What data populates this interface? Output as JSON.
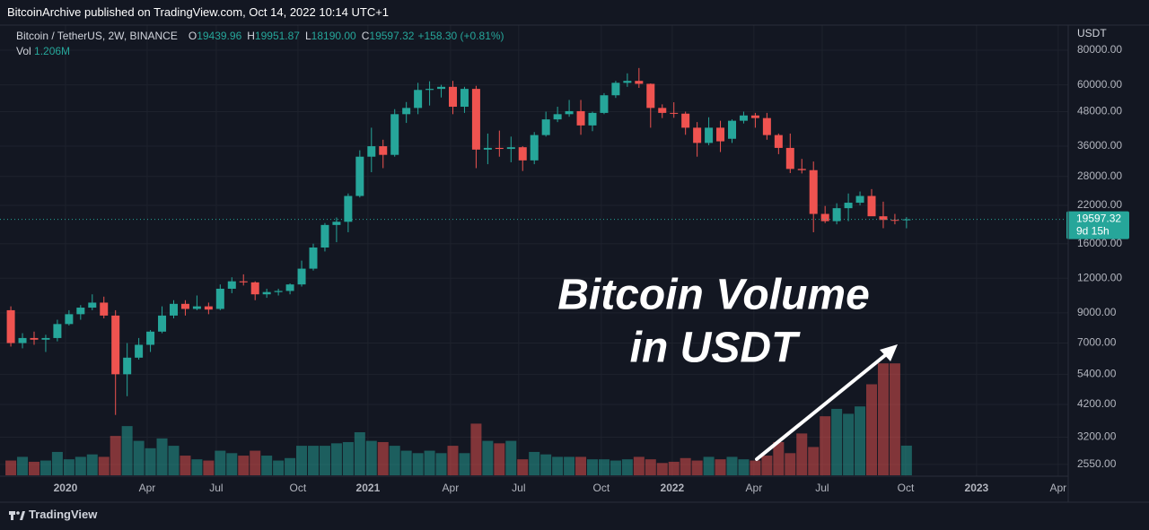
{
  "header": {
    "text": "BitcoinArchive published on TradingView.com, Oct 14, 2022 10:14 UTC+1"
  },
  "chart_data": {
    "type": "candlestick",
    "symbol": "Bitcoin / TetherUS, 2W, BINANCE",
    "ohlc_letters": [
      "O",
      "H",
      "L",
      "C"
    ],
    "ohlc_labels": [
      "19439.96",
      "19951.87",
      "18190.00",
      "19597.32"
    ],
    "change_label": "+158.30 (+0.81%)",
    "volume_name": "Vol",
    "volume_label": "1.206M",
    "axis_unit": "USDT",
    "countdown": "9d 15h",
    "annotation": [
      "Bitcoin Volume",
      "in USDT"
    ],
    "up_color": "#26a69a",
    "down_color": "#ef5350",
    "log_y": true,
    "grid": true,
    "xlim": [
      -0.16,
      90.9
    ],
    "ylim": [
      2330,
      98600
    ],
    "volume_lim": [
      0,
      18.3
    ],
    "xticks": [
      {
        "value": 4.7,
        "label": "2020"
      },
      {
        "value": 11.72,
        "label": "Apr"
      },
      {
        "value": 17.66,
        "label": "Jul"
      },
      {
        "value": 24.68,
        "label": "Oct"
      },
      {
        "value": 30.7,
        "label": "2021"
      },
      {
        "value": 37.8,
        "label": "Apr"
      },
      {
        "value": 43.66,
        "label": "Jul"
      },
      {
        "value": 50.76,
        "label": "Oct"
      },
      {
        "value": 56.86,
        "label": "2022"
      },
      {
        "value": 63.88,
        "label": "Apr"
      },
      {
        "value": 69.75,
        "label": "Jul"
      },
      {
        "value": 76.93,
        "label": "Oct"
      },
      {
        "value": 83.02,
        "label": "2023"
      },
      {
        "value": 90.04,
        "label": "Apr"
      }
    ],
    "yticks": [
      {
        "value": 80000,
        "label": "80000.00"
      },
      {
        "value": 60000,
        "label": "60000.00"
      },
      {
        "value": 48000,
        "label": "48000.00"
      },
      {
        "value": 36000,
        "label": "36000.00"
      },
      {
        "value": 28000,
        "label": "28000.00"
      },
      {
        "value": 22000,
        "label": "22000.00"
      },
      {
        "value": 16000,
        "label": "16000.00"
      },
      {
        "value": 12000,
        "label": "12000.00"
      },
      {
        "value": 9000,
        "label": "9000.00"
      },
      {
        "value": 7000,
        "label": "7000.00"
      },
      {
        "value": 5400,
        "label": "5400.00"
      },
      {
        "value": 4200,
        "label": "4200.00"
      },
      {
        "value": 3200,
        "label": "3200.00"
      },
      {
        "value": 2550,
        "label": "2550.00"
      }
    ],
    "open": [
      9200,
      7000,
      7300,
      7200,
      7300,
      8200,
      8900,
      9400,
      9800,
      8800,
      5400,
      6200,
      6900,
      7700,
      8800,
      9700,
      9300,
      9500,
      9300,
      11000,
      11700,
      11600,
      10500,
      10700,
      10800,
      11400,
      13000,
      15500,
      18700,
      19200,
      23800,
      33000,
      36000,
      33500,
      47000,
      49500,
      57500,
      58000,
      59000,
      50000,
      58000,
      35000,
      35500,
      35200,
      35700,
      32000,
      39500,
      45000,
      47000,
      48200,
      42800,
      47500,
      55000,
      61000,
      62000,
      60500,
      49500,
      47500,
      47200,
      42000,
      37000,
      42000,
      38300,
      44500,
      46500,
      45500,
      39500,
      35500,
      29800,
      29500,
      20500,
      19300,
      21500,
      22500,
      23800,
      20100,
      19500,
      19439.96
    ],
    "high": [
      9500,
      7600,
      7700,
      7500,
      8500,
      9200,
      9600,
      10500,
      10300,
      9200,
      7000,
      7300,
      7800,
      9500,
      10000,
      10000,
      10400,
      9800,
      11400,
      12100,
      12400,
      11700,
      11000,
      11000,
      11500,
      13900,
      16000,
      19000,
      19900,
      24300,
      34800,
      42000,
      38000,
      49000,
      52000,
      61000,
      61800,
      60000,
      62000,
      59000,
      59500,
      40000,
      41000,
      39000,
      36000,
      40500,
      48000,
      50000,
      52900,
      52900,
      48000,
      56000,
      62000,
      66000,
      69000,
      60700,
      51000,
      51900,
      48000,
      44000,
      45800,
      44500,
      45000,
      48000,
      47500,
      47500,
      40000,
      40000,
      32400,
      31700,
      21900,
      22400,
      24300,
      24700,
      25200,
      22700,
      20500,
      19951.87
    ],
    "low": [
      6800,
      6700,
      6900,
      6500,
      7100,
      8100,
      8500,
      9200,
      8600,
      3850,
      4500,
      6100,
      6500,
      7600,
      8600,
      8800,
      9200,
      8900,
      9200,
      10600,
      11300,
      10000,
      10200,
      10400,
      10500,
      11200,
      12800,
      15000,
      16200,
      17600,
      23500,
      29000,
      30000,
      33000,
      43700,
      47000,
      50500,
      54000,
      47000,
      47500,
      30000,
      31000,
      33000,
      31500,
      29300,
      31000,
      39000,
      44000,
      46000,
      39600,
      40800,
      47000,
      53800,
      59000,
      58500,
      42000,
      45500,
      45600,
      39600,
      33000,
      36300,
      34300,
      37000,
      43500,
      42000,
      38000,
      33700,
      28800,
      28700,
      17600,
      19000,
      18800,
      19300,
      22000,
      20700,
      18200,
      18800,
      18190
    ],
    "close": [
      7000,
      7300,
      7200,
      7300,
      8200,
      8900,
      9400,
      9800,
      8800,
      5400,
      6200,
      6900,
      7700,
      8800,
      9700,
      9300,
      9500,
      9250,
      11000,
      11700,
      11600,
      10500,
      10700,
      10800,
      11400,
      13000,
      15500,
      18700,
      19200,
      23800,
      33000,
      36000,
      33500,
      47000,
      49500,
      57500,
      58000,
      59000,
      50000,
      58000,
      35000,
      35500,
      35200,
      35700,
      32000,
      39500,
      45000,
      47000,
      48200,
      42800,
      47500,
      55000,
      61000,
      62000,
      60500,
      49500,
      47500,
      47200,
      42000,
      37000,
      42000,
      37500,
      44500,
      46500,
      45500,
      39500,
      35500,
      29800,
      29500,
      20500,
      19300,
      21500,
      22500,
      23800,
      20100,
      19500,
      19400,
      19597.32
    ],
    "volume": [
      0.6,
      0.75,
      0.55,
      0.6,
      0.95,
      0.65,
      0.75,
      0.85,
      0.75,
      1.6,
      2.0,
      1.4,
      1.1,
      1.5,
      1.2,
      0.8,
      0.65,
      0.6,
      1.0,
      0.9,
      0.8,
      1.0,
      0.8,
      0.6,
      0.7,
      1.2,
      1.2,
      1.2,
      1.3,
      1.35,
      1.75,
      1.4,
      1.35,
      1.2,
      1.0,
      0.9,
      1.0,
      0.9,
      1.2,
      0.9,
      2.1,
      1.4,
      1.3,
      1.4,
      0.65,
      0.95,
      0.85,
      0.75,
      0.75,
      0.75,
      0.65,
      0.65,
      0.6,
      0.65,
      0.75,
      0.65,
      0.5,
      0.55,
      0.7,
      0.6,
      0.75,
      0.65,
      0.75,
      0.65,
      0.6,
      0.8,
      1.35,
      0.9,
      1.7,
      1.15,
      2.4,
      2.7,
      2.5,
      2.8,
      3.7,
      4.55,
      4.55,
      1.206
    ]
  },
  "footer": {
    "brand": "TradingView"
  }
}
